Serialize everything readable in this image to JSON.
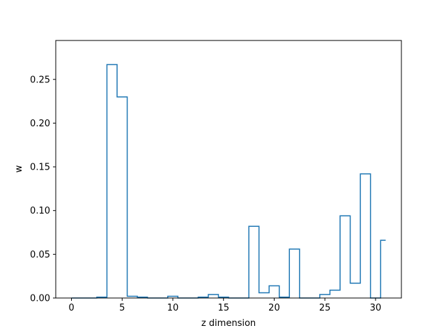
{
  "chart_data": {
    "type": "step",
    "title": "",
    "xlabel": "z dimension",
    "ylabel": "w",
    "xlim": [
      -1.55,
      32.55
    ],
    "ylim": [
      0,
      0.2945
    ],
    "xticks": [
      0,
      5,
      10,
      15,
      20,
      25,
      30
    ],
    "yticks": [
      0.0,
      0.05,
      0.1,
      0.15,
      0.2,
      0.25
    ],
    "grid": false,
    "x": [
      0,
      1,
      2,
      3,
      4,
      5,
      6,
      7,
      8,
      9,
      10,
      11,
      12,
      13,
      14,
      15,
      16,
      17,
      18,
      19,
      20,
      21,
      22,
      23,
      24,
      25,
      26,
      27,
      28,
      29,
      30,
      31
    ],
    "values": [
      0.0,
      0.0,
      0.0,
      0.001,
      0.267,
      0.23,
      0.002,
      0.001,
      0.0,
      0.0,
      0.002,
      0.0,
      0.0,
      0.001,
      0.004,
      0.001,
      0.0,
      0.0,
      0.082,
      0.006,
      0.014,
      0.001,
      0.056,
      0.0,
      0.0,
      0.004,
      0.009,
      0.094,
      0.017,
      0.142,
      0.0,
      0.066
    ],
    "line_color": "#1f77b4"
  }
}
